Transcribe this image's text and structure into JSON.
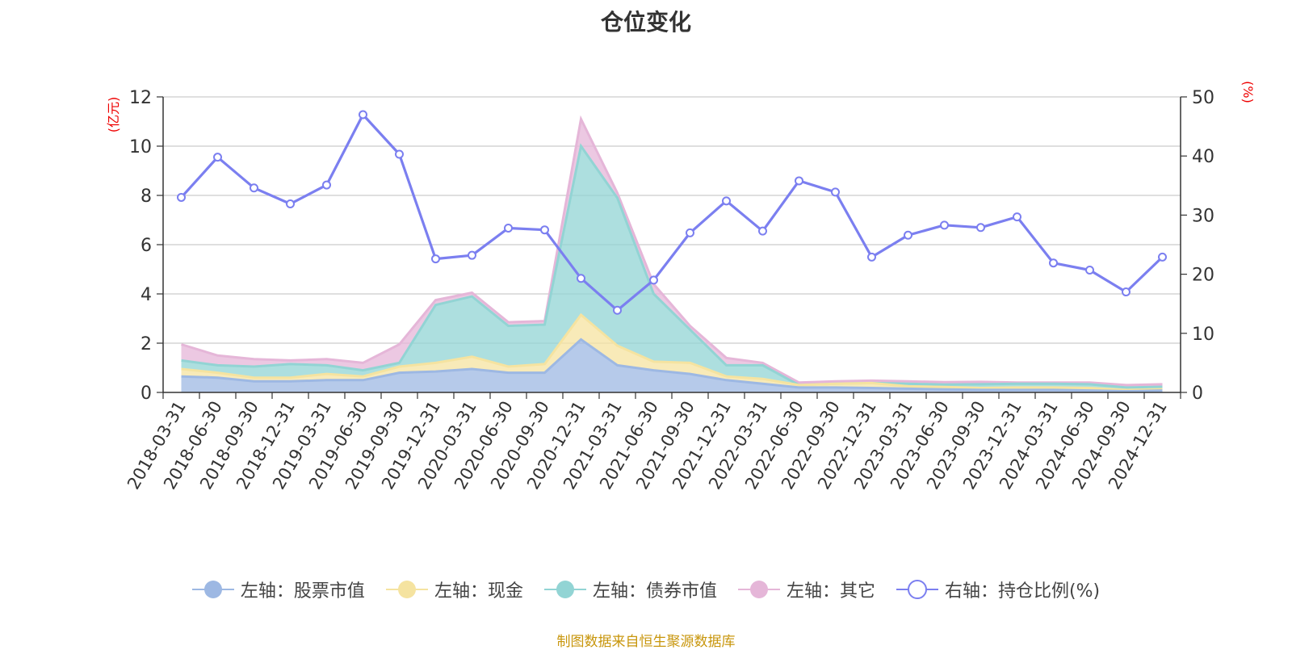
{
  "title": "仓位变化",
  "source_note": "制图数据来自恒生聚源数据库",
  "colors": {
    "stock": "#9db8e3",
    "cash": "#f5e3a0",
    "bond": "#92d4d4",
    "other": "#e5b6d8",
    "ratio": "#7b7ff0",
    "axis_unit": "#ee0000"
  },
  "chart_data": {
    "type": "area",
    "title": "仓位变化",
    "y_left_unit": "(亿元)",
    "y_right_unit": "(%)",
    "y_left_ticks": [
      "0",
      "2",
      "4",
      "6",
      "8",
      "10",
      "12"
    ],
    "y_right_ticks": [
      "0",
      "10",
      "20",
      "30",
      "40",
      "50"
    ],
    "y_left_range": [
      0,
      12
    ],
    "y_right_range": [
      0,
      50
    ],
    "grid": true,
    "legend_position": "bottom",
    "categories": [
      "2018-03-31",
      "2018-06-30",
      "2018-09-30",
      "2018-12-31",
      "2019-03-31",
      "2019-06-30",
      "2019-09-30",
      "2019-12-31",
      "2020-03-31",
      "2020-06-30",
      "2020-09-30",
      "2020-12-31",
      "2021-03-31",
      "2021-06-30",
      "2021-09-30",
      "2021-12-31",
      "2022-03-31",
      "2022-06-30",
      "2022-09-30",
      "2022-12-31",
      "2023-03-31",
      "2023-06-30",
      "2023-09-30",
      "2023-12-31",
      "2024-03-31",
      "2024-06-30",
      "2024-09-30",
      "2024-12-31"
    ],
    "series": [
      {
        "name": "左轴：股票市值",
        "axis": "left",
        "kind": "stacked-area",
        "values": [
          0.65,
          0.6,
          0.45,
          0.45,
          0.5,
          0.5,
          0.8,
          0.85,
          0.95,
          0.8,
          0.8,
          2.15,
          1.1,
          0.9,
          0.75,
          0.5,
          0.35,
          0.2,
          0.2,
          0.18,
          0.15,
          0.12,
          0.1,
          0.1,
          0.1,
          0.08,
          0.05,
          0.08
        ]
      },
      {
        "name": "左轴：现金",
        "axis": "left",
        "kind": "stacked-area",
        "values": [
          0.3,
          0.2,
          0.15,
          0.15,
          0.25,
          0.15,
          0.25,
          0.35,
          0.5,
          0.25,
          0.35,
          1.0,
          0.8,
          0.35,
          0.45,
          0.15,
          0.2,
          0.1,
          0.15,
          0.2,
          0.1,
          0.1,
          0.08,
          0.1,
          0.1,
          0.1,
          0.05,
          0.05
        ]
      },
      {
        "name": "左轴：债券市值",
        "axis": "left",
        "kind": "stacked-area",
        "values": [
          0.35,
          0.3,
          0.45,
          0.55,
          0.35,
          0.25,
          0.15,
          2.35,
          2.45,
          1.65,
          1.6,
          6.85,
          6.0,
          2.75,
          1.35,
          0.45,
          0.55,
          0,
          0,
          0,
          0.1,
          0.1,
          0.15,
          0.15,
          0.15,
          0.15,
          0.1,
          0.1
        ]
      },
      {
        "name": "左轴：其它",
        "axis": "left",
        "kind": "stacked-area",
        "values": [
          0.65,
          0.4,
          0.3,
          0.15,
          0.25,
          0.3,
          0.75,
          0.2,
          0.15,
          0.15,
          0.15,
          1.1,
          0.2,
          0.4,
          0.15,
          0.3,
          0.1,
          0.1,
          0.1,
          0.1,
          0.1,
          0.1,
          0.1,
          0.05,
          0.05,
          0.07,
          0.1,
          0.1
        ]
      },
      {
        "name": "右轴：持仓比例(%)",
        "axis": "right",
        "kind": "line",
        "values": [
          33,
          39.8,
          34.6,
          31.9,
          35.1,
          47,
          40.3,
          22.6,
          23.2,
          27.8,
          27.5,
          19.3,
          13.9,
          19,
          27,
          32.4,
          27.3,
          35.8,
          33.9,
          22.9,
          26.6,
          28.3,
          27.9,
          29.7,
          21.9,
          20.7,
          17,
          22.9
        ]
      }
    ]
  }
}
